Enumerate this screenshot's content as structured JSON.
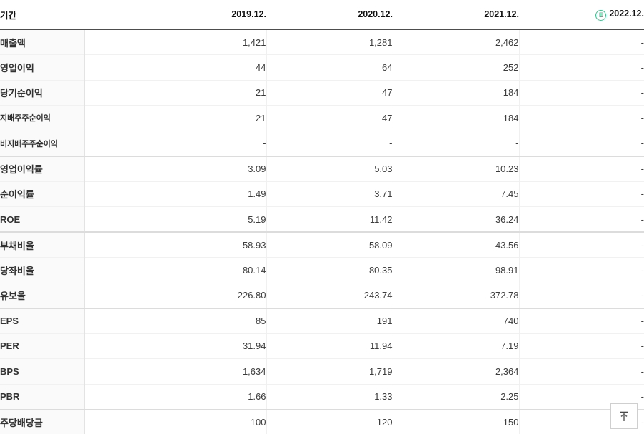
{
  "colors": {
    "estimate_green": "#35c28d",
    "header_border": "#4d4d4d",
    "group_border": "#dcdcdc"
  },
  "table": {
    "header": {
      "label": "기간",
      "columns": [
        "2019.12.",
        "2020.12.",
        "2021.12.",
        "2022.12."
      ],
      "estimate_icon_letter": "E",
      "estimate_column": "2022.12."
    },
    "rows": [
      {
        "label": "매출액",
        "sub": false,
        "group_start": false,
        "values": [
          "1,421",
          "1,281",
          "2,462",
          "-"
        ]
      },
      {
        "label": "영업이익",
        "sub": false,
        "group_start": false,
        "values": [
          "44",
          "64",
          "252",
          "-"
        ]
      },
      {
        "label": "당기순이익",
        "sub": false,
        "group_start": false,
        "values": [
          "21",
          "47",
          "184",
          "-"
        ]
      },
      {
        "label": "지배주주순이익",
        "sub": true,
        "group_start": false,
        "values": [
          "21",
          "47",
          "184",
          "-"
        ]
      },
      {
        "label": "비지배주주순이익",
        "sub": true,
        "group_start": false,
        "values": [
          "-",
          "-",
          "-",
          "-"
        ]
      },
      {
        "label": "영업이익률",
        "sub": false,
        "group_start": true,
        "values": [
          "3.09",
          "5.03",
          "10.23",
          "-"
        ]
      },
      {
        "label": "순이익률",
        "sub": false,
        "group_start": false,
        "values": [
          "1.49",
          "3.71",
          "7.45",
          "-"
        ]
      },
      {
        "label": "ROE",
        "sub": false,
        "group_start": false,
        "values": [
          "5.19",
          "11.42",
          "36.24",
          "-"
        ]
      },
      {
        "label": "부채비율",
        "sub": false,
        "group_start": true,
        "values": [
          "58.93",
          "58.09",
          "43.56",
          "-"
        ]
      },
      {
        "label": "당좌비율",
        "sub": false,
        "group_start": false,
        "values": [
          "80.14",
          "80.35",
          "98.91",
          "-"
        ]
      },
      {
        "label": "유보율",
        "sub": false,
        "group_start": false,
        "values": [
          "226.80",
          "243.74",
          "372.78",
          "-"
        ]
      },
      {
        "label": "EPS",
        "sub": false,
        "group_start": true,
        "values": [
          "85",
          "191",
          "740",
          "-"
        ]
      },
      {
        "label": "PER",
        "sub": false,
        "group_start": false,
        "values": [
          "31.94",
          "11.94",
          "7.19",
          "-"
        ]
      },
      {
        "label": "BPS",
        "sub": false,
        "group_start": false,
        "values": [
          "1,634",
          "1,719",
          "2,364",
          "-"
        ]
      },
      {
        "label": "PBR",
        "sub": false,
        "group_start": false,
        "values": [
          "1.66",
          "1.33",
          "2.25",
          "-"
        ]
      },
      {
        "label": "주당배당금",
        "sub": false,
        "group_start": true,
        "values": [
          "100",
          "120",
          "150",
          "-"
        ]
      }
    ]
  },
  "scroll_top_button": {
    "icon": "arrow-up-to-top-icon"
  }
}
